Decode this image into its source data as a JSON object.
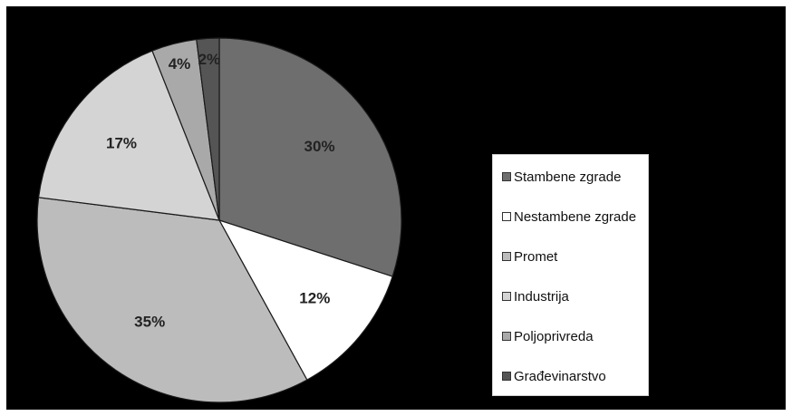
{
  "chart_data": {
    "type": "pie",
    "start_angle_deg": 0,
    "direction": "clockwise",
    "legend_position": "right",
    "slices": [
      {
        "name": "Stambene zgrade",
        "value": 30,
        "label": "30%",
        "color": "#6e6e6e"
      },
      {
        "name": "Nestambene zgrade",
        "value": 12,
        "label": "12%",
        "color": "#ffffff"
      },
      {
        "name": "Promet",
        "value": 35,
        "label": "35%",
        "color": "#bcbcbc"
      },
      {
        "name": "Industrija",
        "value": 17,
        "label": "17%",
        "color": "#d4d4d4"
      },
      {
        "name": "Poljoprivreda",
        "value": 4,
        "label": "4%",
        "color": "#a9a9a9"
      },
      {
        "name": "Građevinarstvo",
        "value": 2,
        "label": "2%",
        "color": "#555555"
      }
    ]
  }
}
